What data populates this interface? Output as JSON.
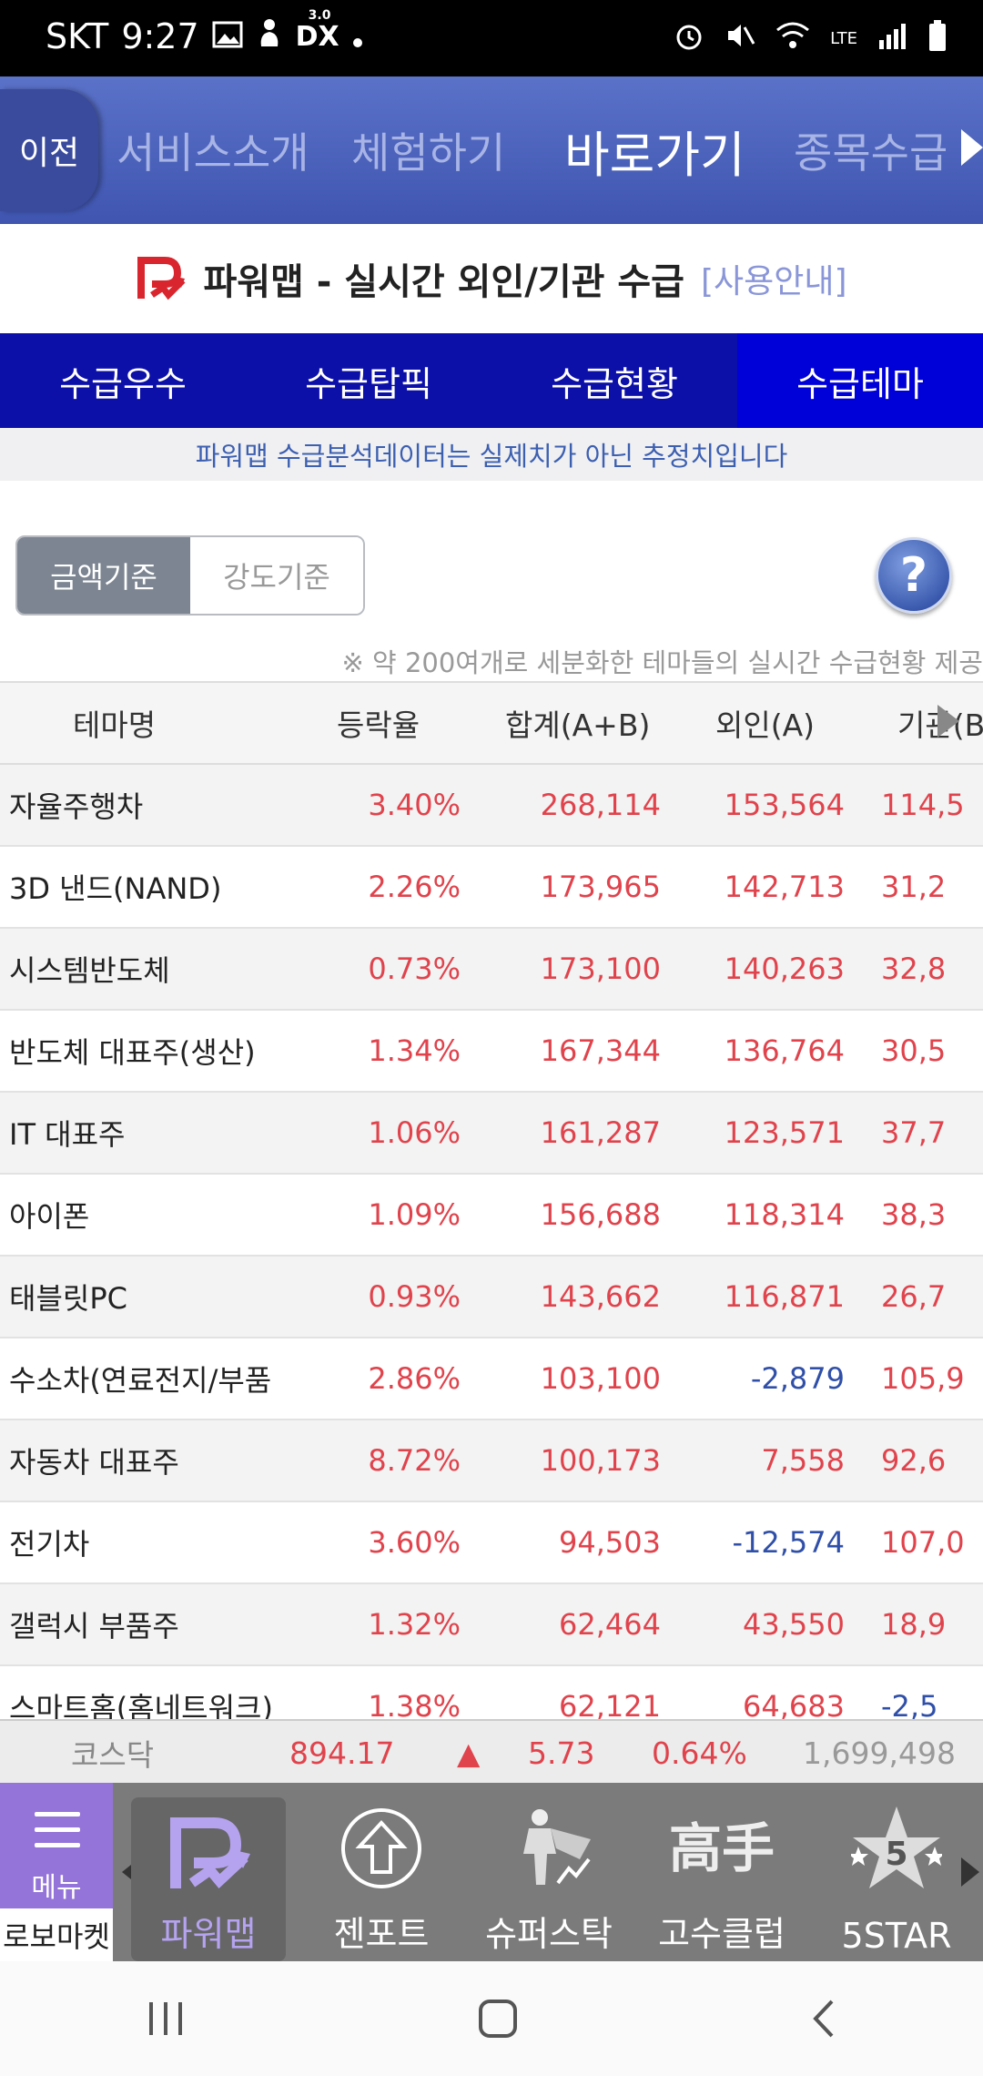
{
  "status_bar": {
    "carrier": "SKT",
    "time": "9:27",
    "dex_label": "DX",
    "dex_version": "3.0",
    "lte": "LTE"
  },
  "top_nav": {
    "back_label": "이전",
    "items": [
      {
        "label": "서비스소개"
      },
      {
        "label": "체험하기"
      },
      {
        "label": "바로가기"
      },
      {
        "label": "종목수급"
      }
    ]
  },
  "page_title": {
    "title": "파워맵 - 실시간 외인/기관 수급",
    "help_link": "[사용안내]"
  },
  "tabs": [
    {
      "label": "수급우수"
    },
    {
      "label": "수급탑픽"
    },
    {
      "label": "수급현황"
    },
    {
      "label": "수급테마"
    }
  ],
  "notice": "파워맵 수급분석데이터는 실제치가 아닌 추정치입니다",
  "toggle": {
    "amount_label": "금액기준",
    "intensity_label": "강도기준"
  },
  "help_button": "?",
  "sub_note": "※ 약 200여개로 세분화한 테마들의 실시간 수급현황 제공",
  "table": {
    "headers": {
      "name": "테마명",
      "rate": "등락율",
      "sum": "합계(A+B)",
      "foreign": "외인(A)",
      "inst": "기관(B"
    },
    "rows": [
      {
        "name": "자율주행차",
        "rate": "3.40%",
        "sum": "268,114",
        "foreign": "153,564",
        "inst": "114,5"
      },
      {
        "name": "3D 낸드(NAND)",
        "rate": "2.26%",
        "sum": "173,965",
        "foreign": "142,713",
        "inst": "31,2"
      },
      {
        "name": "시스템반도체",
        "rate": "0.73%",
        "sum": "173,100",
        "foreign": "140,263",
        "inst": "32,8"
      },
      {
        "name": "반도체 대표주(생산)",
        "rate": "1.34%",
        "sum": "167,344",
        "foreign": "136,764",
        "inst": "30,5"
      },
      {
        "name": "IT 대표주",
        "rate": "1.06%",
        "sum": "161,287",
        "foreign": "123,571",
        "inst": "37,7"
      },
      {
        "name": "아이폰",
        "rate": "1.09%",
        "sum": "156,688",
        "foreign": "118,314",
        "inst": "38,3"
      },
      {
        "name": "태블릿PC",
        "rate": "0.93%",
        "sum": "143,662",
        "foreign": "116,871",
        "inst": "26,7"
      },
      {
        "name": "수소차(연료전지/부품",
        "rate": "2.86%",
        "sum": "103,100",
        "foreign": "-2,879",
        "inst": "105,9"
      },
      {
        "name": "자동차 대표주",
        "rate": "8.72%",
        "sum": "100,173",
        "foreign": "7,558",
        "inst": "92,6"
      },
      {
        "name": "전기차",
        "rate": "3.60%",
        "sum": "94,503",
        "foreign": "-12,574",
        "inst": "107,0"
      },
      {
        "name": "갤럭시 부품주",
        "rate": "1.32%",
        "sum": "62,464",
        "foreign": "43,550",
        "inst": "18,9"
      },
      {
        "name": "스마트홈(홈네트워크)",
        "rate": "1.38%",
        "sum": "62,121",
        "foreign": "64,683",
        "inst": "-2,5"
      }
    ]
  },
  "index_bar": {
    "name": "코스닥",
    "value": "894.17",
    "arrow": "▲",
    "change": "5.73",
    "percent": "0.64%",
    "volume": "1,699,498"
  },
  "bottom_nav": {
    "menu_label": "메뉴",
    "robo_label": "로보마켓",
    "items": [
      {
        "label": "파워맵"
      },
      {
        "label": "젠포트"
      },
      {
        "label": "슈퍼스탁"
      },
      {
        "label": "고수클럽"
      },
      {
        "label": "5STAR"
      }
    ],
    "gosu_glyph": "高手",
    "star_number": "5"
  },
  "colors": {
    "accent": "#0d10a8",
    "up": "#e0434c",
    "down": "#2f4fa8",
    "menu": "#9474d8"
  }
}
